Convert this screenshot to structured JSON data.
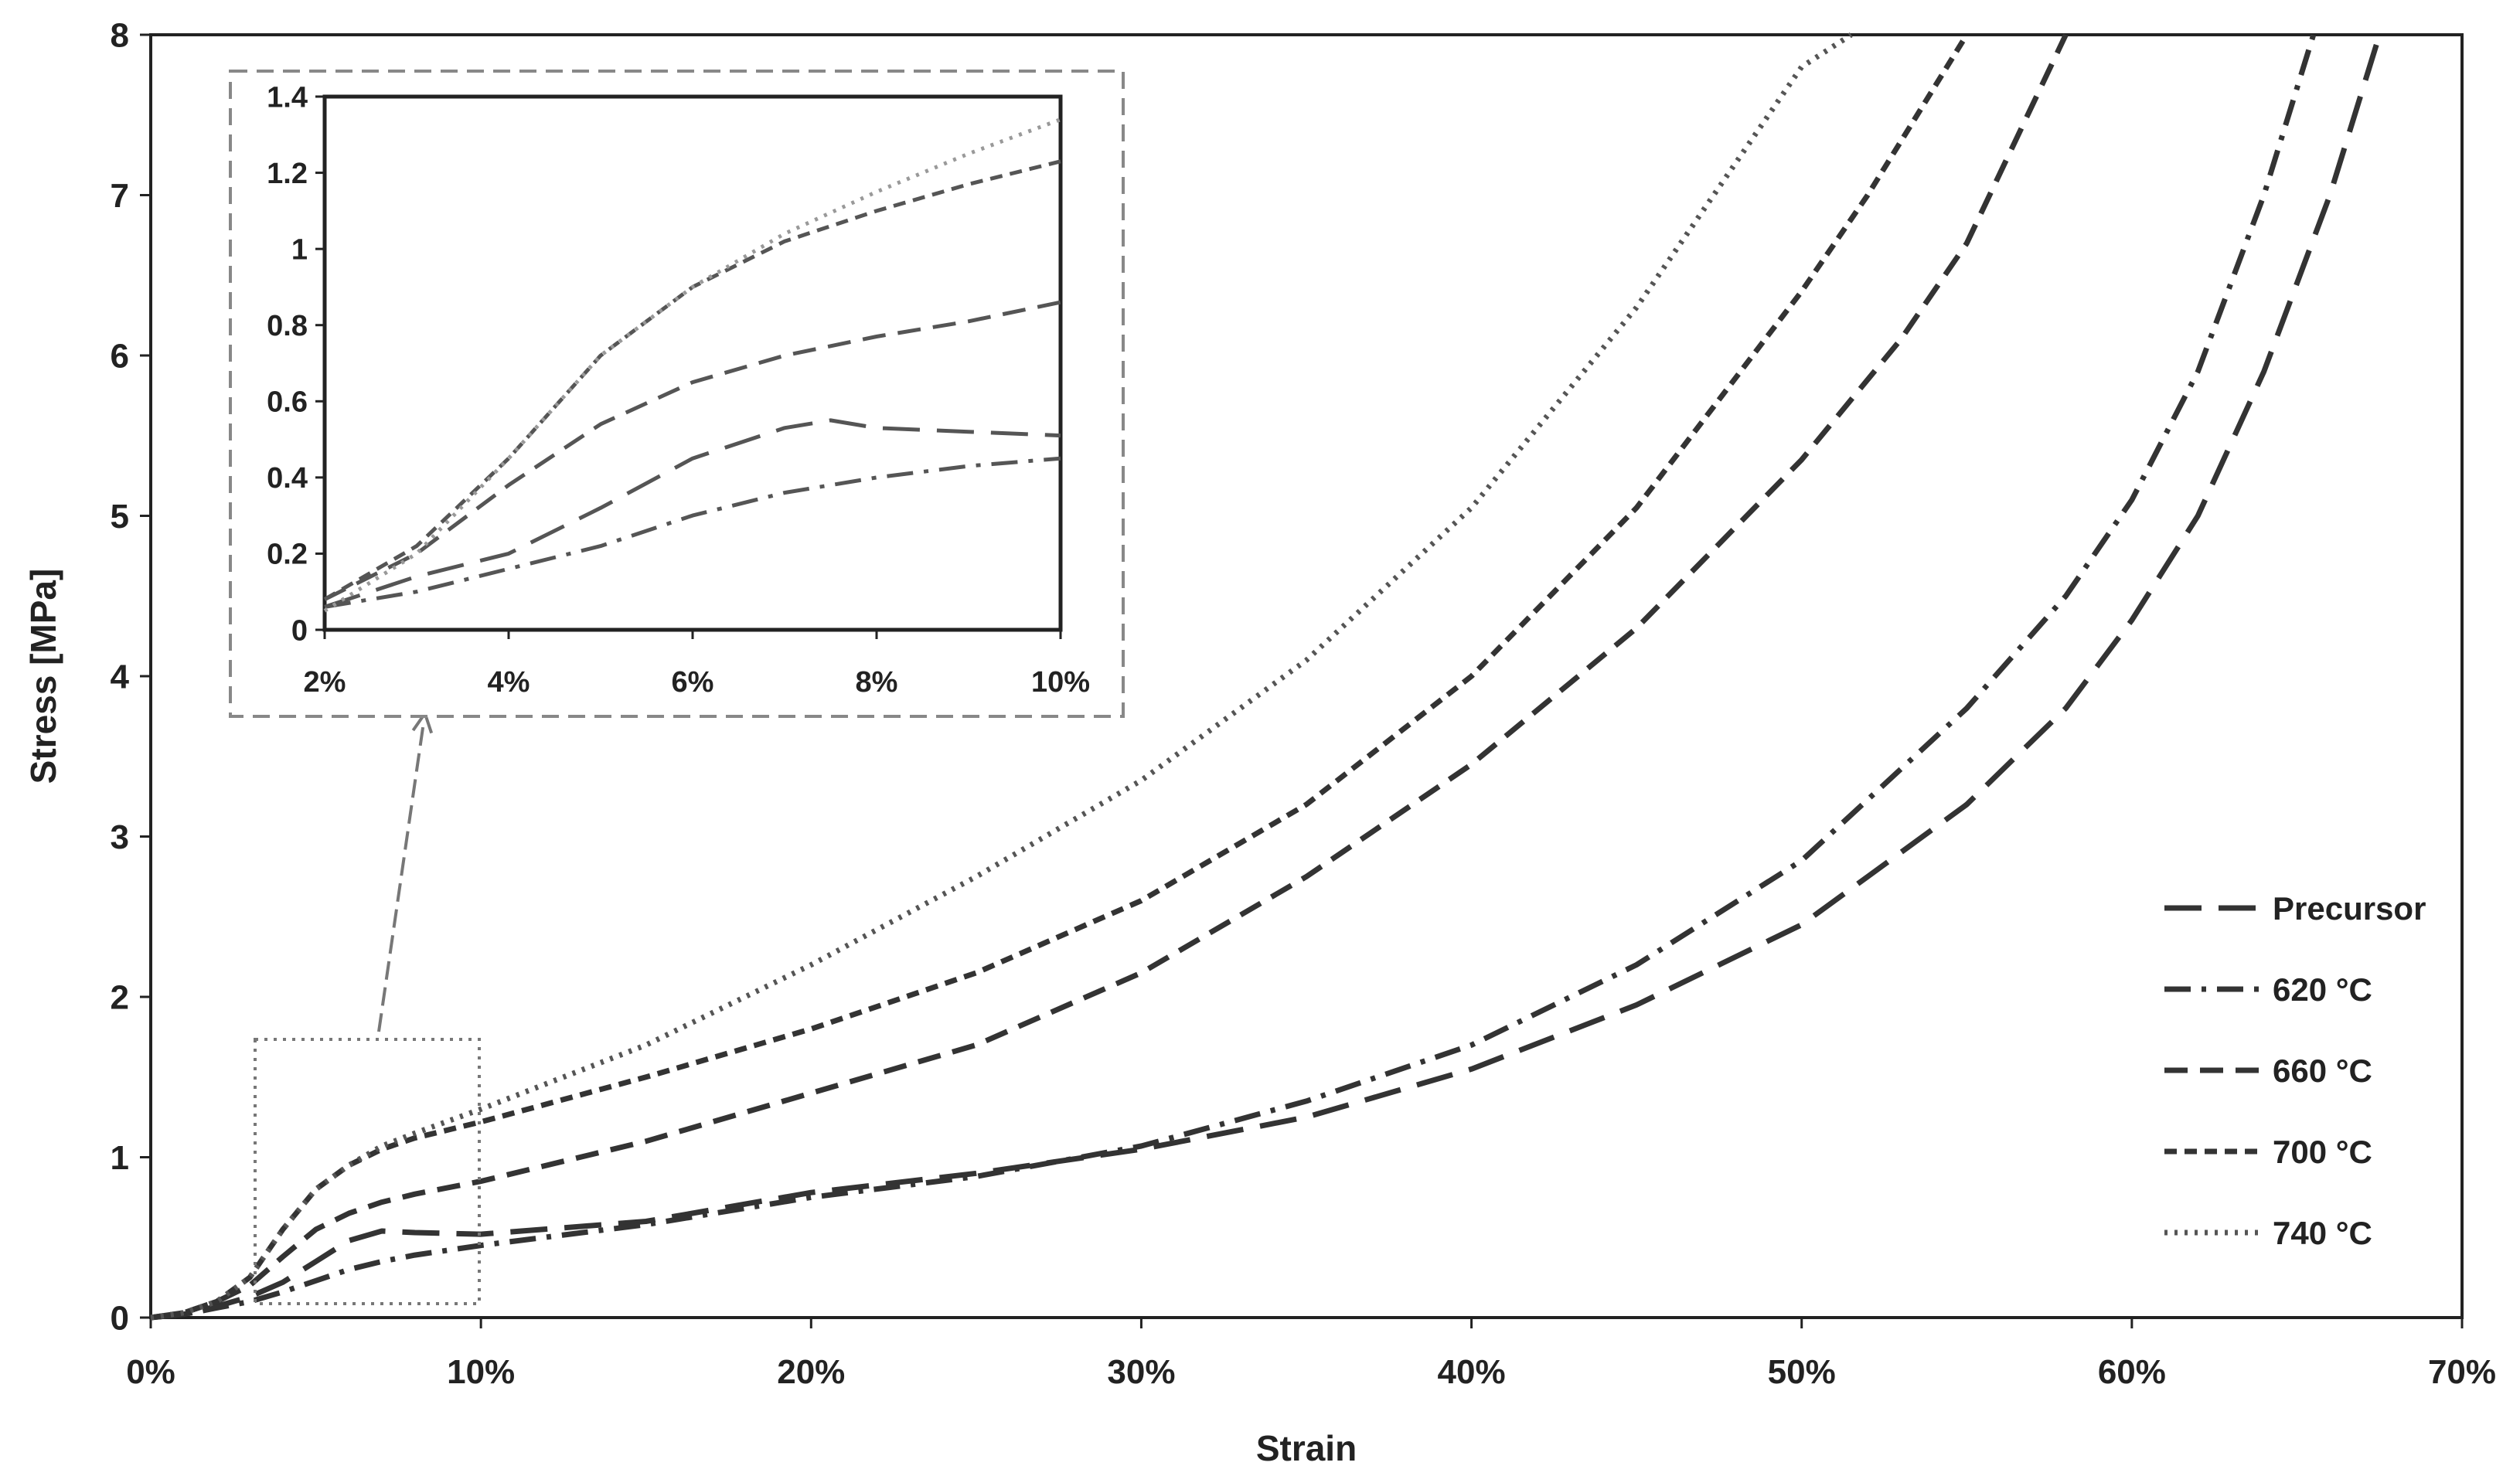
{
  "chart_data": [
    {
      "id": "main",
      "type": "line",
      "title": "",
      "xlabel": "Strain",
      "ylabel": "Stress [MPa]",
      "xlim": [
        0,
        0.7
      ],
      "ylim": [
        0,
        8
      ],
      "x_ticks": [
        0,
        0.1,
        0.2,
        0.3,
        0.4,
        0.5,
        0.6,
        0.7
      ],
      "x_tick_labels": [
        "0%",
        "10%",
        "20%",
        "30%",
        "40%",
        "50%",
        "60%",
        "70%"
      ],
      "y_ticks": [
        0,
        1,
        2,
        3,
        4,
        5,
        6,
        7,
        8
      ],
      "y_tick_labels": [
        "0",
        "1",
        "2",
        "3",
        "4",
        "5",
        "6",
        "7",
        "8"
      ],
      "grid": false,
      "legend_position": "right",
      "series": [
        {
          "name": "Precursor",
          "color": "#333333",
          "dash": "long",
          "x": [
            0,
            0.01,
            0.02,
            0.03,
            0.04,
            0.05,
            0.06,
            0.07,
            0.08,
            0.1,
            0.15,
            0.2,
            0.25,
            0.3,
            0.35,
            0.4,
            0.45,
            0.5,
            0.55,
            0.58,
            0.6,
            0.62,
            0.64,
            0.66,
            0.675
          ],
          "y": [
            0,
            0.02,
            0.07,
            0.13,
            0.22,
            0.35,
            0.48,
            0.54,
            0.53,
            0.52,
            0.6,
            0.78,
            0.9,
            1.05,
            1.25,
            1.55,
            1.95,
            2.45,
            3.2,
            3.8,
            4.35,
            5.0,
            5.9,
            7.0,
            8.0
          ]
        },
        {
          "name": "620 °C",
          "color": "#333333",
          "dash": "dashdot",
          "x": [
            0,
            0.01,
            0.02,
            0.03,
            0.04,
            0.05,
            0.06,
            0.07,
            0.08,
            0.1,
            0.15,
            0.2,
            0.25,
            0.3,
            0.35,
            0.4,
            0.45,
            0.5,
            0.55,
            0.58,
            0.6,
            0.62,
            0.64,
            0.655
          ],
          "y": [
            0,
            0.02,
            0.06,
            0.1,
            0.16,
            0.23,
            0.3,
            0.35,
            0.39,
            0.45,
            0.58,
            0.75,
            0.88,
            1.07,
            1.35,
            1.7,
            2.2,
            2.85,
            3.8,
            4.5,
            5.1,
            5.9,
            7.0,
            8.0
          ]
        },
        {
          "name": "660 °C",
          "color": "#333333",
          "dash": "medium",
          "x": [
            0,
            0.01,
            0.02,
            0.03,
            0.04,
            0.05,
            0.06,
            0.07,
            0.08,
            0.1,
            0.15,
            0.2,
            0.25,
            0.3,
            0.35,
            0.4,
            0.45,
            0.5,
            0.53,
            0.55,
            0.58
          ],
          "y": [
            0,
            0.03,
            0.1,
            0.2,
            0.38,
            0.55,
            0.65,
            0.72,
            0.77,
            0.85,
            1.1,
            1.4,
            1.7,
            2.15,
            2.75,
            3.45,
            4.3,
            5.35,
            6.1,
            6.7,
            8.0
          ]
        },
        {
          "name": "700 °C",
          "color": "#333333",
          "dash": "short",
          "x": [
            0,
            0.01,
            0.02,
            0.03,
            0.04,
            0.05,
            0.06,
            0.07,
            0.08,
            0.1,
            0.15,
            0.2,
            0.25,
            0.3,
            0.35,
            0.4,
            0.45,
            0.5,
            0.52,
            0.55
          ],
          "y": [
            0,
            0.03,
            0.1,
            0.25,
            0.55,
            0.8,
            0.95,
            1.05,
            1.12,
            1.22,
            1.5,
            1.8,
            2.15,
            2.6,
            3.2,
            4.0,
            5.05,
            6.4,
            7.0,
            8.0
          ]
        },
        {
          "name": "740 °C",
          "color": "#555555",
          "dash": "dotted",
          "x": [
            0,
            0.01,
            0.02,
            0.03,
            0.04,
            0.05,
            0.06,
            0.07,
            0.08,
            0.1,
            0.15,
            0.2,
            0.25,
            0.3,
            0.35,
            0.4,
            0.45,
            0.48,
            0.5,
            0.515
          ],
          "y": [
            0,
            0.03,
            0.1,
            0.25,
            0.55,
            0.8,
            0.95,
            1.07,
            1.15,
            1.3,
            1.7,
            2.2,
            2.75,
            3.35,
            4.1,
            5.05,
            6.3,
            7.2,
            7.8,
            8.0
          ]
        }
      ]
    },
    {
      "id": "inset",
      "type": "line",
      "title": "",
      "xlabel": "",
      "ylabel": "",
      "xlim": [
        0.02,
        0.1
      ],
      "ylim": [
        0,
        1.4
      ],
      "x_ticks": [
        0.02,
        0.04,
        0.06,
        0.08,
        0.1
      ],
      "x_tick_labels": [
        "2%",
        "4%",
        "6%",
        "8%",
        "10%"
      ],
      "y_ticks": [
        0,
        0.2,
        0.4,
        0.6,
        0.8,
        1,
        1.2,
        1.4
      ],
      "y_tick_labels": [
        "0",
        "0.2",
        "0.4",
        "0.6",
        "0.8",
        "1",
        "1.2",
        "1.4"
      ],
      "grid": false,
      "series": [
        {
          "name": "Precursor",
          "color": "#555555",
          "dash": "long",
          "x": [
            0.02,
            0.03,
            0.04,
            0.05,
            0.06,
            0.07,
            0.075,
            0.08,
            0.09,
            0.1
          ],
          "y": [
            0.06,
            0.14,
            0.2,
            0.32,
            0.45,
            0.53,
            0.55,
            0.53,
            0.52,
            0.51
          ]
        },
        {
          "name": "620 °C",
          "color": "#555555",
          "dash": "dashdot",
          "x": [
            0.02,
            0.03,
            0.04,
            0.05,
            0.06,
            0.07,
            0.08,
            0.09,
            0.1
          ],
          "y": [
            0.06,
            0.1,
            0.16,
            0.22,
            0.3,
            0.36,
            0.4,
            0.43,
            0.45
          ]
        },
        {
          "name": "660 °C",
          "color": "#555555",
          "dash": "medium",
          "x": [
            0.02,
            0.03,
            0.04,
            0.05,
            0.06,
            0.07,
            0.08,
            0.09,
            0.1
          ],
          "y": [
            0.08,
            0.2,
            0.38,
            0.54,
            0.65,
            0.72,
            0.77,
            0.81,
            0.86
          ]
        },
        {
          "name": "700 °C",
          "color": "#555555",
          "dash": "short",
          "x": [
            0.02,
            0.03,
            0.04,
            0.05,
            0.06,
            0.07,
            0.08,
            0.09,
            0.1
          ],
          "y": [
            0.08,
            0.22,
            0.45,
            0.72,
            0.9,
            1.02,
            1.1,
            1.17,
            1.23
          ]
        },
        {
          "name": "740 °C",
          "color": "#999999",
          "dash": "dotted",
          "x": [
            0.02,
            0.03,
            0.04,
            0.05,
            0.06,
            0.07,
            0.08,
            0.09,
            0.1
          ],
          "y": [
            0.05,
            0.2,
            0.45,
            0.72,
            0.9,
            1.04,
            1.15,
            1.25,
            1.34
          ]
        }
      ]
    }
  ]
}
